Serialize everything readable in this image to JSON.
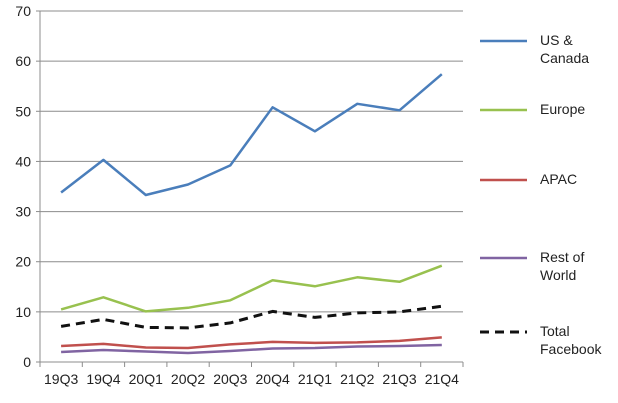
{
  "chart_data": {
    "type": "line",
    "title": "",
    "xlabel": "",
    "ylabel": "",
    "ylim": [
      0,
      70
    ],
    "yticks": [
      0,
      10,
      20,
      30,
      40,
      50,
      60,
      70
    ],
    "grid": "horizontal",
    "legend_position": "right",
    "categories": [
      "19Q3",
      "19Q4",
      "20Q1",
      "20Q2",
      "20Q3",
      "20Q4",
      "21Q1",
      "21Q2",
      "21Q3",
      "21Q4"
    ],
    "series": [
      {
        "name": [
          "US &",
          "Canada"
        ],
        "color": "#4a7ebb",
        "dash": "solid",
        "values": [
          33.8,
          40.3,
          33.3,
          35.4,
          39.2,
          50.8,
          46.0,
          51.5,
          50.2,
          57.4
        ]
      },
      {
        "name": [
          "Europe"
        ],
        "color": "#98c14f",
        "dash": "solid",
        "values": [
          10.5,
          12.9,
          10.1,
          10.8,
          12.3,
          16.3,
          15.1,
          16.9,
          16.0,
          19.2
        ]
      },
      {
        "name": [
          "APAC"
        ],
        "color": "#c0504d",
        "dash": "solid",
        "values": [
          3.2,
          3.6,
          2.9,
          2.8,
          3.5,
          4.0,
          3.8,
          3.9,
          4.2,
          4.9
        ]
      },
      {
        "name": [
          "Rest of",
          "World"
        ],
        "color": "#8064a2",
        "dash": "solid",
        "values": [
          2.0,
          2.4,
          2.1,
          1.8,
          2.2,
          2.7,
          2.8,
          3.1,
          3.2,
          3.4
        ]
      },
      {
        "name": [
          "Total",
          "Facebook"
        ],
        "color": "#111111",
        "dash": "dashed",
        "values": [
          7.1,
          8.5,
          6.9,
          6.8,
          7.8,
          10.1,
          8.9,
          9.8,
          10.0,
          11.1
        ]
      }
    ]
  }
}
